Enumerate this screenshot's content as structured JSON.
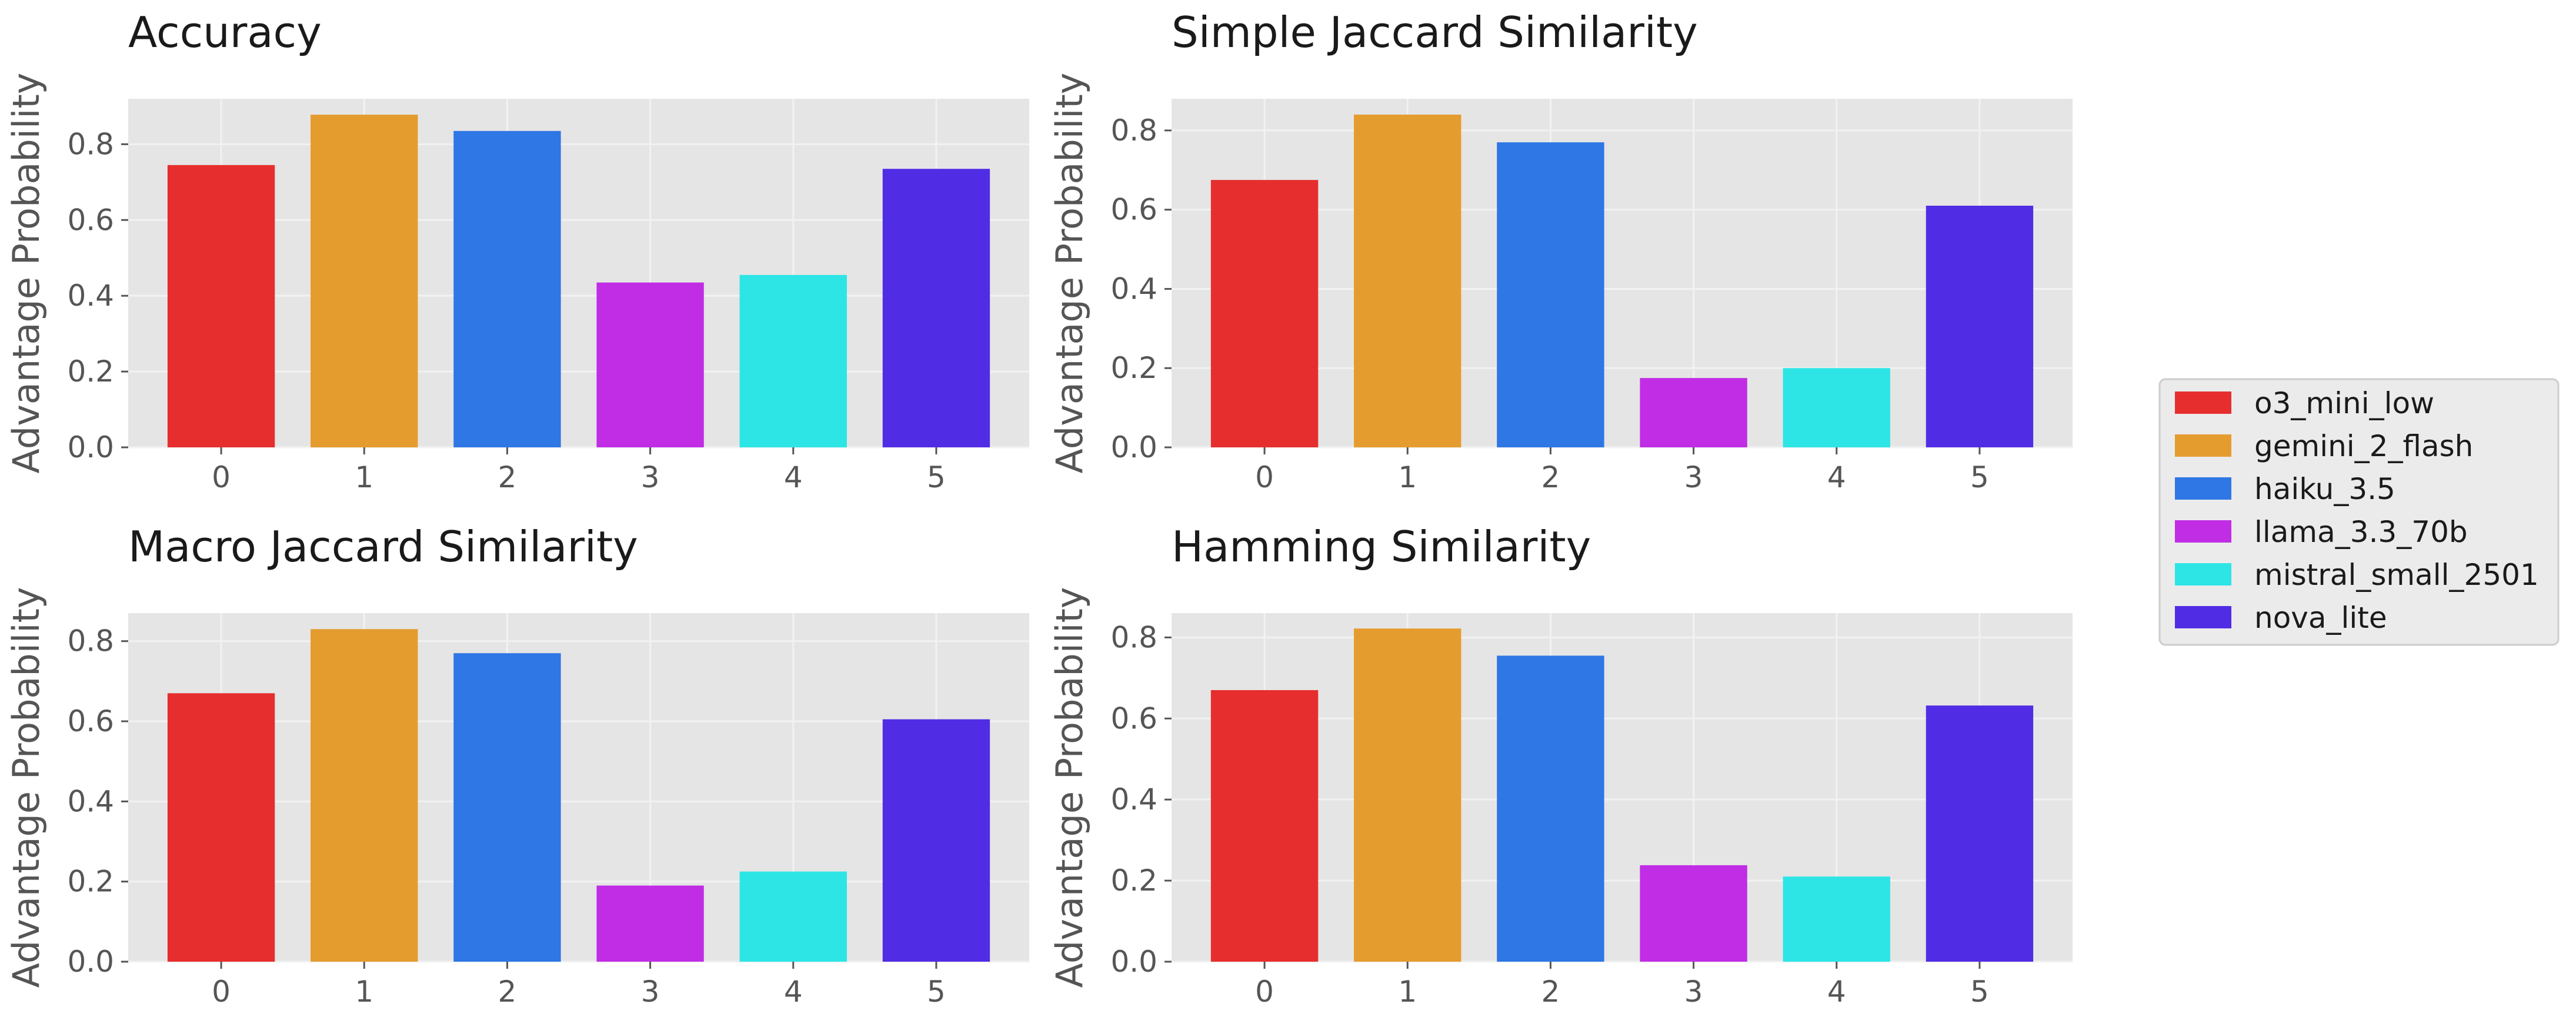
{
  "chart_data": [
    {
      "type": "bar",
      "title": "Accuracy",
      "xlabel": "",
      "ylabel": "Advantage Probability",
      "categories": [
        "0",
        "1",
        "2",
        "3",
        "4",
        "5"
      ],
      "values": [
        0.745,
        0.878,
        0.835,
        0.435,
        0.455,
        0.735
      ],
      "ylim": [
        0,
        0.92
      ],
      "yticks": [
        "0.0",
        "0.2",
        "0.4",
        "0.6",
        "0.8"
      ],
      "grid": true
    },
    {
      "type": "bar",
      "title": "Simple Jaccard Similarity",
      "xlabel": "",
      "ylabel": "Advantage Probability",
      "categories": [
        "0",
        "1",
        "2",
        "3",
        "4",
        "5"
      ],
      "values": [
        0.675,
        0.84,
        0.77,
        0.175,
        0.2,
        0.61
      ],
      "ylim": [
        0,
        0.88
      ],
      "yticks": [
        "0.0",
        "0.2",
        "0.4",
        "0.6",
        "0.8"
      ],
      "grid": true
    },
    {
      "type": "bar",
      "title": "Macro Jaccard Similarity",
      "xlabel": "",
      "ylabel": "Advantage Probability",
      "categories": [
        "0",
        "1",
        "2",
        "3",
        "4",
        "5"
      ],
      "values": [
        0.67,
        0.83,
        0.77,
        0.19,
        0.225,
        0.605
      ],
      "ylim": [
        0,
        0.87
      ],
      "yticks": [
        "0.0",
        "0.2",
        "0.4",
        "0.6",
        "0.8"
      ],
      "grid": true
    },
    {
      "type": "bar",
      "title": "Hamming Similarity",
      "xlabel": "",
      "ylabel": "Advantage Probability",
      "categories": [
        "0",
        "1",
        "2",
        "3",
        "4",
        "5"
      ],
      "values": [
        0.67,
        0.822,
        0.755,
        0.238,
        0.21,
        0.632
      ],
      "ylim": [
        0,
        0.86
      ],
      "yticks": [
        "0.0",
        "0.2",
        "0.4",
        "0.6",
        "0.8"
      ],
      "grid": true
    }
  ],
  "legend": {
    "placement": "right",
    "entries": [
      {
        "label": "o3_mini_low",
        "color": "#e62e2e"
      },
      {
        "label": "gemini_2_flash",
        "color": "#e59c2e"
      },
      {
        "label": "haiku_3.5",
        "color": "#2e77e5"
      },
      {
        "label": "llama_3.3_70b",
        "color": "#c02de5"
      },
      {
        "label": "mistral_small_2501",
        "color": "#2de5e5"
      },
      {
        "label": "nova_lite",
        "color": "#512ce5"
      }
    ]
  },
  "colors": {
    "axes_background": "#e5e5e5",
    "grid": "#f2f2f2",
    "text": "#555555",
    "legend_background": "#ebebeb",
    "legend_border": "#cccccc"
  }
}
